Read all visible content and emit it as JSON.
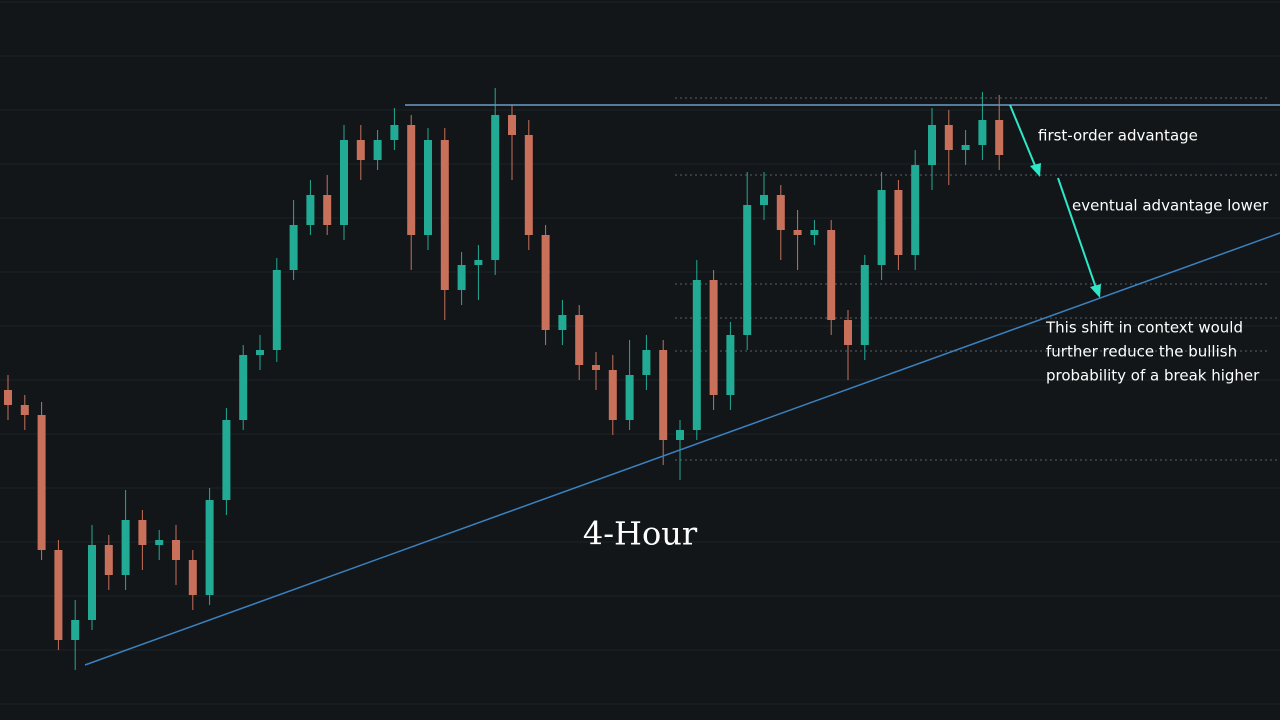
{
  "chart_data": {
    "type": "candlestick",
    "title": "4-Hour",
    "annotations": [
      "first-order advantage",
      "eventual advantage lower"
    ],
    "note_lines": [
      "This shift in context would",
      "further reduce the bullish",
      "probability of a break higher"
    ],
    "ylim": [
      0,
      720
    ],
    "up_color": "#22ab94",
    "down_color": "#c8705a",
    "open": [
      330,
      315,
      305,
      170,
      80,
      100,
      175,
      145,
      200,
      175,
      180,
      160,
      125,
      220,
      300,
      365,
      370,
      450,
      495,
      525,
      495,
      580,
      560,
      580,
      595,
      485,
      580,
      430,
      455,
      460,
      605,
      585,
      485,
      390,
      405,
      355,
      350,
      300,
      345,
      370,
      280,
      290,
      440,
      325,
      385,
      515,
      525,
      490,
      485,
      490,
      400,
      375,
      455,
      530,
      465,
      555,
      595,
      570,
      575,
      600
    ],
    "high": [
      345,
      325,
      318,
      180,
      120,
      195,
      185,
      230,
      210,
      190,
      195,
      170,
      232,
      312,
      375,
      385,
      462,
      520,
      540,
      545,
      595,
      595,
      590,
      612,
      605,
      592,
      592,
      468,
      475,
      632,
      615,
      600,
      495,
      420,
      415,
      368,
      365,
      380,
      385,
      380,
      300,
      460,
      450,
      398,
      548,
      548,
      535,
      510,
      500,
      500,
      410,
      465,
      548,
      540,
      570,
      612,
      610,
      590,
      628,
      625
    ],
    "low": [
      300,
      290,
      160,
      70,
      50,
      90,
      130,
      130,
      150,
      160,
      135,
      110,
      115,
      205,
      290,
      350,
      358,
      440,
      485,
      485,
      480,
      540,
      550,
      570,
      450,
      470,
      400,
      415,
      420,
      445,
      540,
      470,
      375,
      375,
      340,
      330,
      285,
      290,
      330,
      255,
      240,
      280,
      310,
      310,
      370,
      500,
      460,
      450,
      475,
      385,
      340,
      360,
      440,
      450,
      450,
      530,
      535,
      555,
      560,
      550
    ],
    "close": [
      315,
      305,
      170,
      80,
      100,
      175,
      145,
      200,
      175,
      180,
      160,
      125,
      220,
      300,
      365,
      370,
      450,
      495,
      525,
      495,
      580,
      560,
      580,
      595,
      485,
      580,
      430,
      455,
      460,
      605,
      585,
      485,
      390,
      405,
      355,
      350,
      300,
      345,
      370,
      280,
      290,
      440,
      325,
      385,
      515,
      525,
      490,
      485,
      490,
      400,
      375,
      455,
      530,
      465,
      555,
      595,
      570,
      575,
      600,
      565
    ]
  }
}
